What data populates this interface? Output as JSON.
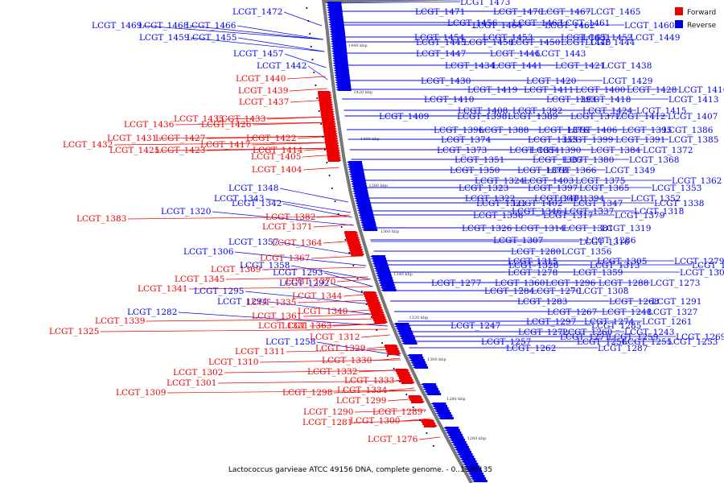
{
  "caption": "Lactococcus garvieae ATCC 49156 DNA, complete genome. - 0..1950135",
  "legend": [
    {
      "label": "Forward",
      "color": "#ee0000"
    },
    {
      "label": "Reverse",
      "color": "#0000ee"
    }
  ],
  "colors": {
    "forward": "#ee0000",
    "reverse": "#0000ee",
    "backbone": "#777777"
  },
  "ticks": [
    "1440 kbp",
    "1420 kbp",
    "1400 kbp",
    "1380 kbp",
    "1360 kbp",
    "1340 kbp",
    "1320 kbp",
    "1300 kbp",
    "1280 kbp",
    "1260 kbp"
  ],
  "reverse_labels": [
    "LCGT_1473",
    "LCGT_1472",
    "LCGT_1471",
    "LCGT_1470",
    "LCGT_1467",
    "LCGT_1465",
    "LCGT_1469",
    "LCGT_1468",
    "LCGT_1466",
    "LCGT_1464",
    "LCGT_1462",
    "LCGT_1460",
    "LCGT_1456",
    "LCGT_1463",
    "LCGT_1461",
    "LCGT_1459",
    "LCGT_1455",
    "LCGT_1454",
    "LCGT_1453",
    "LCGT_1451",
    "LCGT_1452",
    "LCGT_1449",
    "LCGT_1445",
    "LCGT_1458",
    "LCGT_1450",
    "LCGT_1448",
    "LCGT_1444",
    "LCGT_1457",
    "LCGT_1447",
    "LCGT_1446",
    "LCGT_1443",
    "LCGT_1442",
    "LCGT_1434",
    "LCGT_1441",
    "LCGT_1421",
    "LCGT_1438",
    "LCGT_1430",
    "LCGT_1420",
    "LCGT_1429",
    "LCGT_1419",
    "LCGT_1411",
    "LCGT_1400",
    "LCGT_1428",
    "LCGT_1416",
    "LCGT_1410",
    "LCGT_1393",
    "LCGT_1418",
    "LCGT_1413",
    "LCGT_1408",
    "LCGT_1392",
    "LCGT_1424",
    "LCGT_1415",
    "LCGT_1409",
    "LCGT_1398",
    "LCGT_1389",
    "LCGT_1377",
    "LCGT_1412",
    "LCGT_1407",
    "LCGT_1396",
    "LCGT_1388",
    "LCGT_1376",
    "LCGT_1406",
    "LCGT_1395",
    "LCGT_1386",
    "LCGT_1374",
    "LCGT_1355",
    "LCGT_1399",
    "LCGT_1391",
    "LCGT_1385",
    "LCGT_1373",
    "LCGT_1354",
    "LCGT_1390",
    "LCGT_1384",
    "LCGT_1372",
    "LCGT_1351",
    "LCGT_1387",
    "LCGT_1380",
    "LCGT_1368",
    "LCGT_1350",
    "LCGT_1378",
    "LCGT_1366",
    "LCGT_1349",
    "LCGT_1324",
    "LCGT_1403",
    "LCGT_1375",
    "LCGT_1362",
    "LCGT_1348",
    "LCGT_1323",
    "LCGT_1397",
    "LCGT_1365",
    "LCGT_1353",
    "LCGT_1343",
    "LCGT_1322",
    "LCGT_1401",
    "LCGT_1394",
    "LCGT_1352",
    "LCGT_1342",
    "LCGT_1321",
    "LCGT_1402",
    "LCGT_1347",
    "LCGT_1338",
    "LCGT_1320",
    "LCGT_1346",
    "LCGT_1337",
    "LCGT_1318",
    "LCGT_1336",
    "LCGT_1317",
    "LCGT_1379",
    "LCGT_1326",
    "LCGT_1314",
    "LCGT_1381",
    "LCGT_1319",
    "LCGT_1307",
    "LCGT_1286",
    "LCGT_1357",
    "LCGT_1316",
    "LCGT_1306",
    "LCGT_1280",
    "LCGT_1356",
    "LCGT_1315",
    "LCGT_1305",
    "LCGT_1279",
    "LCGT_1358",
    "LCGT_1328",
    "LCGT_1313",
    "LCGT_1304",
    "LCGT_1293",
    "LCGT_1278",
    "LCGT_1359",
    "LCGT_1303",
    "LCGT_1292",
    "LCGT_1277",
    "LCGT_1360",
    "LCGT_1296",
    "LCGT_1288",
    "LCGT_1273",
    "LCGT_1295",
    "LCGT_1284",
    "LCGT_1270",
    "LCGT_1308",
    "LCGT_1294",
    "LCGT_1283",
    "LCGT_1268",
    "LCGT_1291",
    "LCGT_1282",
    "LCGT_1267",
    "LCGT_1248",
    "LCGT_1327",
    "LCGT_1297",
    "LCGT_1274",
    "LCGT_1261",
    "LCGT_1247",
    "LCGT_1285",
    "LCGT_1272",
    "LCGT_1260",
    "LCGT_1243",
    "LCGT_1271",
    "LCGT_1259",
    "LCGT_1269",
    "LCGT_1258",
    "LCGT_1257",
    "LCGT_1256",
    "LCGT_1255",
    "LCGT_1253",
    "LCGT_1262",
    "LCGT_1287"
  ],
  "forward_labels": [
    "LCGT_1440",
    "LCGT_1439",
    "LCGT_1437",
    "LCGT_1435",
    "LCGT_1433",
    "LCGT_1436",
    "LCGT_1426",
    "LCGT_1431",
    "LCGT_1427",
    "LCGT_1422",
    "LCGT_1432",
    "LCGT_1417",
    "LCGT_1425",
    "LCGT_1423",
    "LCGT_1414",
    "LCGT_1405",
    "LCGT_1404",
    "LCGT_1383",
    "LCGT_1382",
    "LCGT_1371",
    "LCGT_1364",
    "LCGT_1367",
    "LCGT_1369",
    "LCGT_1345",
    "LCGT_1370",
    "LCGT_1341",
    "LCGT_1344",
    "LCGT_1335",
    "LCGT_1340",
    "LCGT_1361",
    "LCGT_1339",
    "LCGT_1331",
    "LCGT_1363",
    "LCGT_1325",
    "LCGT_1312",
    "LCGT_1329",
    "LCGT_1311",
    "LCGT_1330",
    "LCGT_1310",
    "LCGT_1332",
    "LCGT_1302",
    "LCGT_1333",
    "LCGT_1301",
    "LCGT_1334",
    "LCGT_1309",
    "LCGT_1298",
    "LCGT_1299",
    "LCGT_1290",
    "LCGT_1289",
    "LCGT_1300",
    "LCGT_1281",
    "LCGT_1276"
  ]
}
